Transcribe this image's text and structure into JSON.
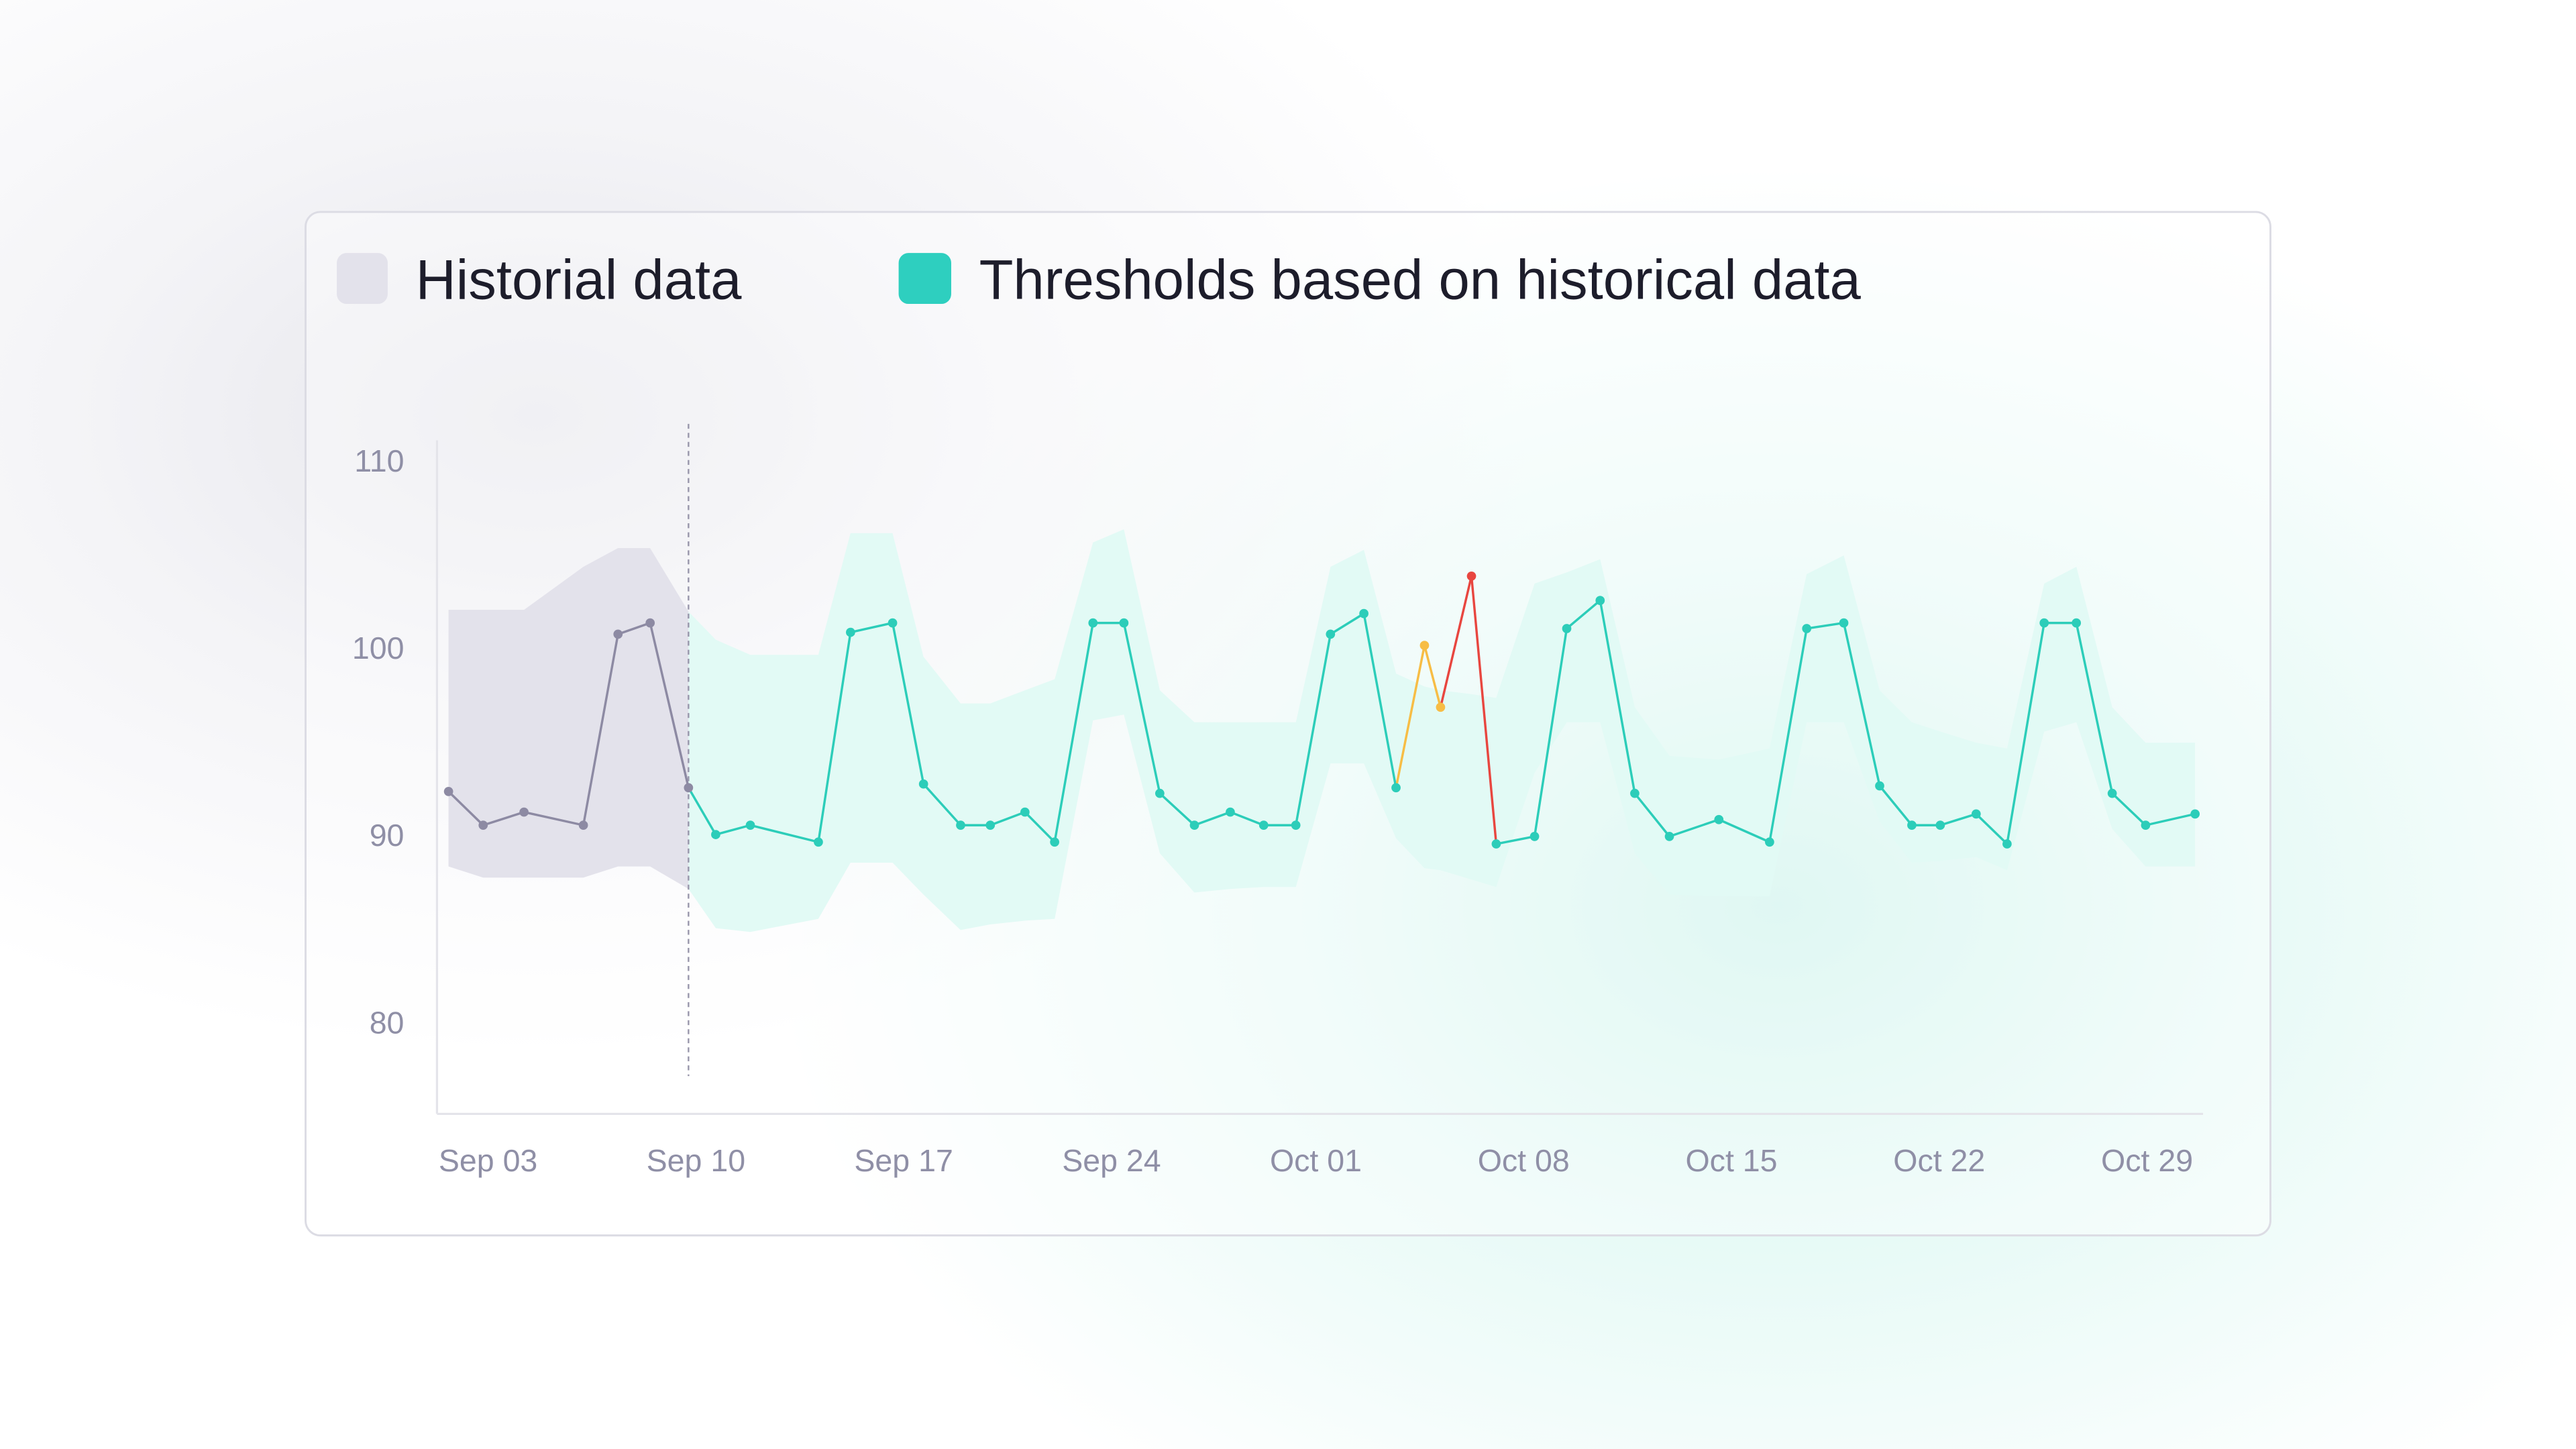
{
  "legend": {
    "historical": {
      "label": "Historial data",
      "color": "#e3e2eb"
    },
    "thresholds": {
      "label": "Thresholds based on historical data",
      "color": "#2ecfbf"
    }
  },
  "colors": {
    "historical_line": "#8d8aa3",
    "historical_band": "#e3e2eb",
    "normal_line": "#2ccdb9",
    "threshold_band": "#e2faf5",
    "warning": "#f7bd45",
    "critical": "#e8463f",
    "axis": "#e4e4ea"
  },
  "chart_data": {
    "type": "line",
    "title": "",
    "xlabel": "",
    "ylabel": "",
    "ylim": [
      76.5,
      112
    ],
    "y_ticks": [
      "110",
      "100",
      "90",
      "80"
    ],
    "x_ticks": [
      "Sep 03",
      "Sep 10",
      "Sep 17",
      "Sep 24",
      "Oct 01",
      "Oct 08",
      "Oct 15",
      "Oct 22",
      "Oct 29"
    ],
    "grid": false,
    "legend_position": "top-left",
    "historical_cutoff": "Sep 11 10:00",
    "points": [
      {
        "t": "Sep 03 08:00",
        "v": 92.3,
        "s": "historical"
      },
      {
        "t": "Sep 04 12:00",
        "v": 90.5,
        "s": "historical"
      },
      {
        "t": "Sep 05 21:00",
        "v": 91.2,
        "s": "historical"
      },
      {
        "t": "Sep 07 21:00",
        "v": 90.5,
        "s": "historical"
      },
      {
        "t": "Sep 09 01:00",
        "v": 100.7,
        "s": "historical"
      },
      {
        "t": "Sep 10 03:00",
        "v": 101.3,
        "s": "historical"
      },
      {
        "t": "Sep 11 10:00",
        "v": 92.5,
        "s": "historical"
      },
      {
        "t": "Sep 12 08:00",
        "v": 90.0,
        "s": "normal"
      },
      {
        "t": "Sep 13 12:00",
        "v": 90.5,
        "s": "normal"
      },
      {
        "t": "Sep 15 19:00",
        "v": 89.6,
        "s": "normal"
      },
      {
        "t": "Sep 16 21:00",
        "v": 100.8,
        "s": "normal"
      },
      {
        "t": "Sep 18 07:00",
        "v": 101.3,
        "s": "normal"
      },
      {
        "t": "Sep 19 08:00",
        "v": 92.7,
        "s": "normal"
      },
      {
        "t": "Sep 20 14:00",
        "v": 90.5,
        "s": "normal"
      },
      {
        "t": "Sep 21 14:00",
        "v": 90.5,
        "s": "normal"
      },
      {
        "t": "Sep 22 18:00",
        "v": 91.2,
        "s": "normal"
      },
      {
        "t": "Sep 23 18:00",
        "v": 89.6,
        "s": "normal"
      },
      {
        "t": "Sep 25 01:00",
        "v": 101.3,
        "s": "normal"
      },
      {
        "t": "Sep 26 02:00",
        "v": 101.3,
        "s": "normal"
      },
      {
        "t": "Sep 27 07:00",
        "v": 92.2,
        "s": "normal"
      },
      {
        "t": "Sep 28 11:00",
        "v": 90.5,
        "s": "normal"
      },
      {
        "t": "Sep 29 16:00",
        "v": 91.2,
        "s": "normal"
      },
      {
        "t": "Sep 30 19:00",
        "v": 90.5,
        "s": "normal"
      },
      {
        "t": "Oct 01 21:00",
        "v": 90.5,
        "s": "normal"
      },
      {
        "t": "Oct 03 01:00",
        "v": 100.7,
        "s": "normal"
      },
      {
        "t": "Oct 04 04:00",
        "v": 101.8,
        "s": "normal"
      },
      {
        "t": "Oct 05 06:00",
        "v": 92.5,
        "s": "normal"
      },
      {
        "t": "Oct 06 05:00",
        "v": 100.1,
        "s": "warning"
      },
      {
        "t": "Oct 06 18:00",
        "v": 96.8,
        "s": "warning"
      },
      {
        "t": "Oct 07 19:00",
        "v": 103.8,
        "s": "critical"
      },
      {
        "t": "Oct 08 15:00",
        "v": 89.5,
        "s": "normal"
      },
      {
        "t": "Oct 09 22:00",
        "v": 89.9,
        "s": "normal"
      },
      {
        "t": "Oct 11 00:00",
        "v": 101.0,
        "s": "normal"
      },
      {
        "t": "Oct 12 03:00",
        "v": 102.5,
        "s": "normal"
      },
      {
        "t": "Oct 13 07:00",
        "v": 92.2,
        "s": "normal"
      },
      {
        "t": "Oct 14 11:00",
        "v": 89.9,
        "s": "normal"
      },
      {
        "t": "Oct 16 03:00",
        "v": 90.8,
        "s": "normal"
      },
      {
        "t": "Oct 17 20:00",
        "v": 89.6,
        "s": "normal"
      },
      {
        "t": "Oct 19 02:00",
        "v": 101.0,
        "s": "normal"
      },
      {
        "t": "Oct 20 08:00",
        "v": 101.3,
        "s": "normal"
      },
      {
        "t": "Oct 21 13:00",
        "v": 92.6,
        "s": "normal"
      },
      {
        "t": "Oct 22 15:00",
        "v": 90.5,
        "s": "normal"
      },
      {
        "t": "Oct 23 14:00",
        "v": 90.5,
        "s": "normal"
      },
      {
        "t": "Oct 24 19:00",
        "v": 91.1,
        "s": "normal"
      },
      {
        "t": "Oct 25 20:00",
        "v": 89.5,
        "s": "normal"
      },
      {
        "t": "Oct 27 02:00",
        "v": 101.3,
        "s": "normal"
      },
      {
        "t": "Oct 28 04:00",
        "v": 101.3,
        "s": "normal"
      },
      {
        "t": "Oct 29 09:00",
        "v": 92.2,
        "s": "normal"
      },
      {
        "t": "Oct 30 12:00",
        "v": 90.5,
        "s": "normal"
      },
      {
        "t": "Nov 01 04:00",
        "v": 91.1,
        "s": "normal"
      }
    ],
    "historical_band": [
      {
        "t": "Sep 03 08:00",
        "lo": 88.3,
        "hi": 102.0
      },
      {
        "t": "Sep 04 12:00",
        "lo": 87.7,
        "hi": 102.0
      },
      {
        "t": "Sep 05 21:00",
        "lo": 87.7,
        "hi": 102.0
      },
      {
        "t": "Sep 07 21:00",
        "lo": 87.7,
        "hi": 104.3
      },
      {
        "t": "Sep 09 01:00",
        "lo": 88.3,
        "hi": 105.3
      },
      {
        "t": "Sep 10 03:00",
        "lo": 88.3,
        "hi": 105.3
      },
      {
        "t": "Sep 11 10:00",
        "lo": 87.1,
        "hi": 101.9
      }
    ],
    "threshold_band": [
      {
        "t": "Sep 11 10:00",
        "lo": 87.1,
        "hi": 101.9
      },
      {
        "t": "Sep 12 08:00",
        "lo": 85.0,
        "hi": 100.4
      },
      {
        "t": "Sep 13 12:00",
        "lo": 84.8,
        "hi": 99.6
      },
      {
        "t": "Sep 15 19:00",
        "lo": 85.5,
        "hi": 99.6
      },
      {
        "t": "Sep 16 21:00",
        "lo": 88.5,
        "hi": 106.1
      },
      {
        "t": "Sep 18 07:00",
        "lo": 88.5,
        "hi": 106.1
      },
      {
        "t": "Sep 19 08:00",
        "lo": 86.8,
        "hi": 99.5
      },
      {
        "t": "Sep 20 14:00",
        "lo": 84.9,
        "hi": 97.0
      },
      {
        "t": "Sep 21 14:00",
        "lo": 85.2,
        "hi": 97.0
      },
      {
        "t": "Sep 22 18:00",
        "lo": 85.4,
        "hi": 97.7
      },
      {
        "t": "Sep 23 18:00",
        "lo": 85.5,
        "hi": 98.3
      },
      {
        "t": "Sep 25 01:00",
        "lo": 96.1,
        "hi": 105.6
      },
      {
        "t": "Sep 26 02:00",
        "lo": 96.4,
        "hi": 106.3
      },
      {
        "t": "Sep 27 07:00",
        "lo": 89.0,
        "hi": 97.7
      },
      {
        "t": "Sep 28 11:00",
        "lo": 86.9,
        "hi": 96.0
      },
      {
        "t": "Sep 29 16:00",
        "lo": 87.1,
        "hi": 96.0
      },
      {
        "t": "Sep 30 19:00",
        "lo": 87.2,
        "hi": 96.0
      },
      {
        "t": "Oct 01 21:00",
        "lo": 87.2,
        "hi": 96.0
      },
      {
        "t": "Oct 03 01:00",
        "lo": 93.8,
        "hi": 104.3
      },
      {
        "t": "Oct 04 04:00",
        "lo": 93.8,
        "hi": 105.2
      },
      {
        "t": "Oct 05 06:00",
        "lo": 89.8,
        "hi": 98.6
      },
      {
        "t": "Oct 06 05:00",
        "lo": 88.2,
        "hi": 97.9
      },
      {
        "t": "Oct 06 18:00",
        "lo": 88.1,
        "hi": 97.7
      },
      {
        "t": "Oct 07 19:00",
        "lo": 87.6,
        "hi": 97.5
      },
      {
        "t": "Oct 08 15:00",
        "lo": 87.2,
        "hi": 97.3
      },
      {
        "t": "Oct 09 22:00",
        "lo": 93.3,
        "hi": 103.4
      },
      {
        "t": "Oct 11 00:00",
        "lo": 96.0,
        "hi": 104.0
      },
      {
        "t": "Oct 12 03:00",
        "lo": 96.0,
        "hi": 104.7
      },
      {
        "t": "Oct 13 07:00",
        "lo": 89.0,
        "hi": 96.8
      },
      {
        "t": "Oct 14 11:00",
        "lo": 86.8,
        "hi": 94.2
      },
      {
        "t": "Oct 16 03:00",
        "lo": 86.7,
        "hi": 94.0
      },
      {
        "t": "Oct 17 20:00",
        "lo": 86.7,
        "hi": 94.6
      },
      {
        "t": "Oct 19 02:00",
        "lo": 96.0,
        "hi": 103.9
      },
      {
        "t": "Oct 20 08:00",
        "lo": 96.0,
        "hi": 104.9
      },
      {
        "t": "Oct 21 13:00",
        "lo": 90.7,
        "hi": 97.7
      },
      {
        "t": "Oct 22 15:00",
        "lo": 88.5,
        "hi": 96.0
      },
      {
        "t": "Oct 23 14:00",
        "lo": 88.6,
        "hi": 95.5
      },
      {
        "t": "Oct 24 19:00",
        "lo": 88.8,
        "hi": 94.9
      },
      {
        "t": "Oct 25 20:00",
        "lo": 88.1,
        "hi": 94.6
      },
      {
        "t": "Oct 27 02:00",
        "lo": 95.5,
        "hi": 103.4
      },
      {
        "t": "Oct 28 04:00",
        "lo": 96.0,
        "hi": 104.3
      },
      {
        "t": "Oct 29 09:00",
        "lo": 90.3,
        "hi": 96.8
      },
      {
        "t": "Oct 30 12:00",
        "lo": 88.3,
        "hi": 94.9
      },
      {
        "t": "Nov 01 04:00",
        "lo": 88.3,
        "hi": 94.9
      }
    ]
  }
}
